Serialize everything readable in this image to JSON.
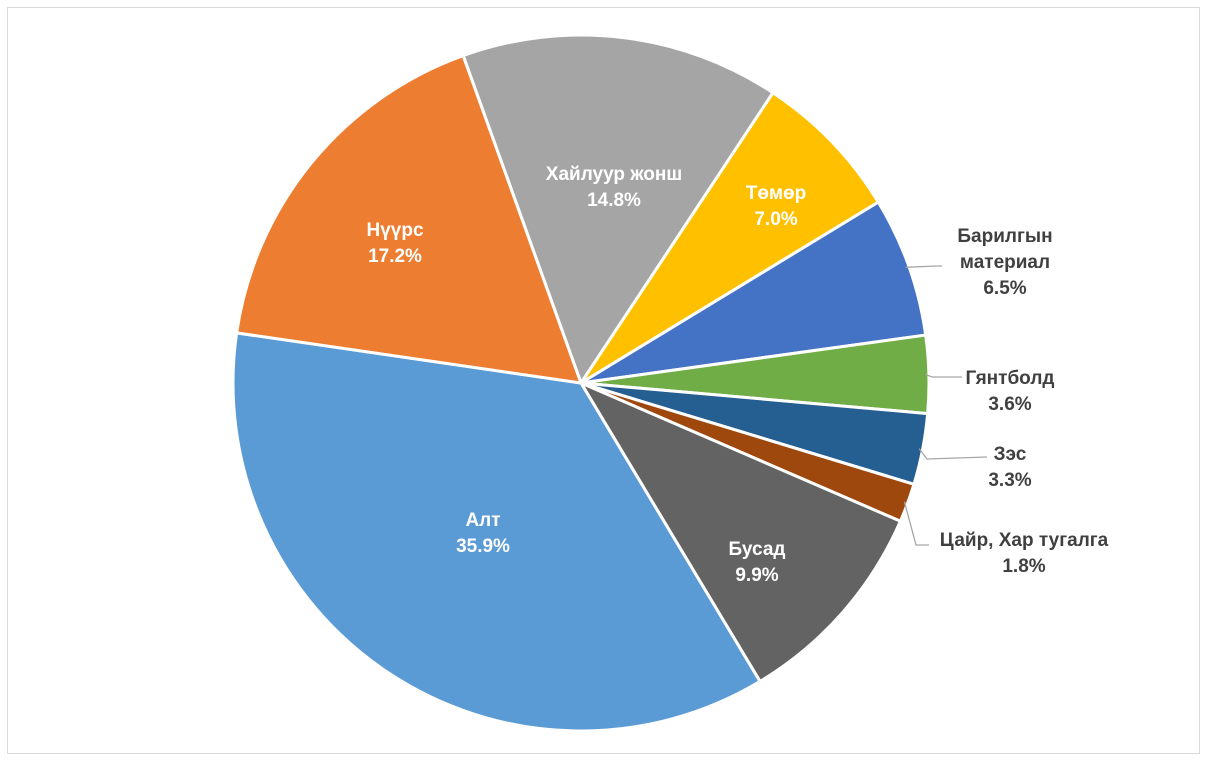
{
  "chart_data": {
    "type": "pie",
    "title": "",
    "categories": [
      "Хайлуур жонш",
      "Төмөр",
      "Барилгын материал",
      "Гянтболд",
      "Зэс",
      "Цайр, Хар тугалга",
      "Бусад",
      "Алт",
      "Нүүрс"
    ],
    "values": [
      14.8,
      7.0,
      6.5,
      3.6,
      3.3,
      1.8,
      9.9,
      35.9,
      17.2
    ],
    "label_lines": [
      [
        "Хайлуур жонш",
        "14.8%"
      ],
      [
        "Төмөр",
        "7.0%"
      ],
      [
        "Барилгын",
        "материал",
        "6.5%"
      ],
      [
        "Гянтболд",
        "3.6%"
      ],
      [
        "Зэс",
        "3.3%"
      ],
      [
        "Цайр, Хар тугалга",
        "1.8%"
      ],
      [
        "Бусад",
        "9.9%"
      ],
      [
        "Алт",
        "35.9%"
      ],
      [
        "Нүүрс",
        "17.2%"
      ]
    ],
    "colors": [
      "#a5a5a5",
      "#ffc000",
      "#4472c4",
      "#70ad47",
      "#255e91",
      "#9e480e",
      "#636363",
      "#5b9bd5",
      "#ed7d31"
    ],
    "label_colors": [
      "#ffffff",
      "#ffffff",
      "#404040",
      "#404040",
      "#404040",
      "#404040",
      "#ffffff",
      "#ffffff",
      "#ffffff"
    ],
    "label_placement": [
      "inside",
      "inside",
      "outside",
      "outside",
      "outside",
      "outside",
      "inside",
      "inside",
      "inside"
    ],
    "start": "12 o'clock (slightly left)",
    "direction": "clockwise",
    "legend": "none"
  }
}
